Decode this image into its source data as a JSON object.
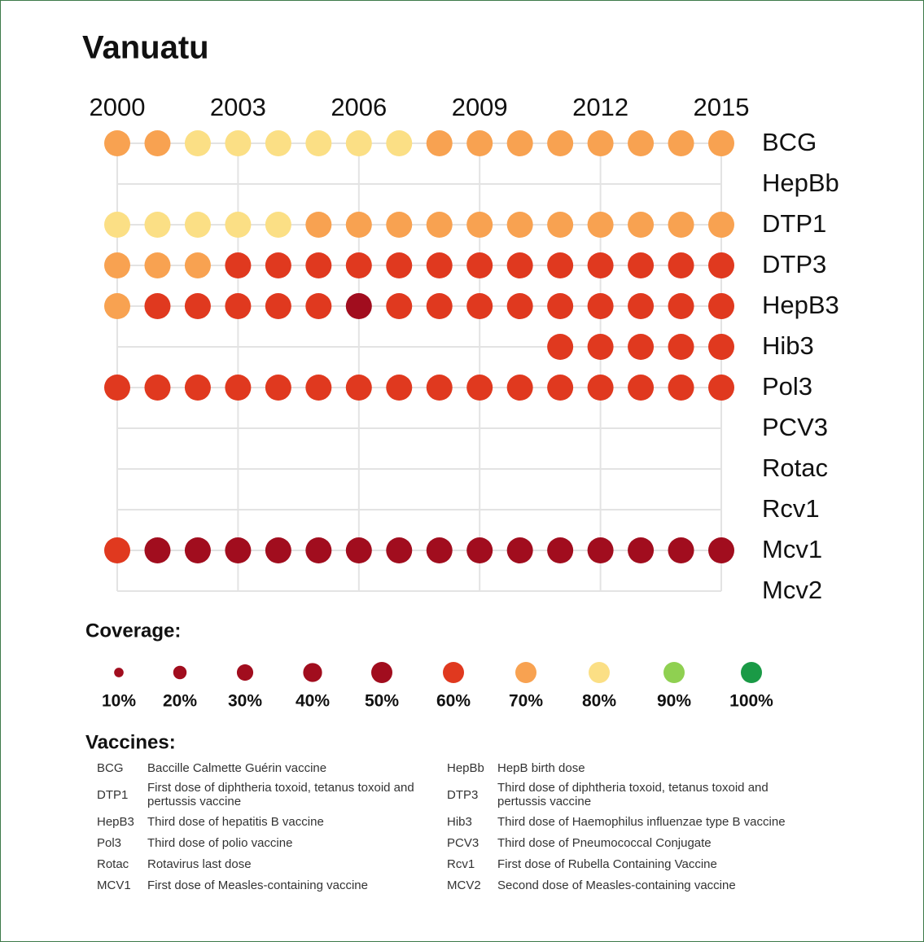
{
  "chart_data": {
    "type": "dot-matrix",
    "title": "Vanuatu",
    "x": [
      2000,
      2001,
      2002,
      2003,
      2004,
      2005,
      2006,
      2007,
      2008,
      2009,
      2010,
      2011,
      2012,
      2013,
      2014,
      2015
    ],
    "xlim": [
      2000,
      2015
    ],
    "xticks": [
      2000,
      2003,
      2006,
      2009,
      2012,
      2015
    ],
    "grid": true,
    "series": [
      {
        "name": "BCG",
        "values": [
          70,
          70,
          80,
          80,
          80,
          80,
          80,
          80,
          70,
          70,
          70,
          70,
          70,
          70,
          70,
          70
        ]
      },
      {
        "name": "HepBb",
        "values": [
          null,
          null,
          null,
          null,
          null,
          null,
          null,
          null,
          null,
          null,
          null,
          null,
          null,
          null,
          null,
          null
        ]
      },
      {
        "name": "DTP1",
        "values": [
          80,
          80,
          80,
          80,
          80,
          70,
          70,
          70,
          70,
          70,
          70,
          70,
          70,
          70,
          70,
          70
        ]
      },
      {
        "name": "DTP3",
        "values": [
          70,
          70,
          70,
          60,
          60,
          60,
          60,
          60,
          60,
          60,
          60,
          60,
          60,
          60,
          60,
          60
        ]
      },
      {
        "name": "HepB3",
        "values": [
          70,
          60,
          60,
          60,
          60,
          60,
          50,
          60,
          60,
          60,
          60,
          60,
          60,
          60,
          60,
          60
        ]
      },
      {
        "name": "Hib3",
        "values": [
          null,
          null,
          null,
          null,
          null,
          null,
          null,
          null,
          null,
          null,
          null,
          60,
          60,
          60,
          60,
          60
        ]
      },
      {
        "name": "Pol3",
        "values": [
          60,
          60,
          60,
          60,
          60,
          60,
          60,
          60,
          60,
          60,
          60,
          60,
          60,
          60,
          60,
          60
        ]
      },
      {
        "name": "PCV3",
        "values": [
          null,
          null,
          null,
          null,
          null,
          null,
          null,
          null,
          null,
          null,
          null,
          null,
          null,
          null,
          null,
          null
        ]
      },
      {
        "name": "Rotac",
        "values": [
          null,
          null,
          null,
          null,
          null,
          null,
          null,
          null,
          null,
          null,
          null,
          null,
          null,
          null,
          null,
          null
        ]
      },
      {
        "name": "Rcv1",
        "values": [
          null,
          null,
          null,
          null,
          null,
          null,
          null,
          null,
          null,
          null,
          null,
          null,
          null,
          null,
          null,
          null
        ]
      },
      {
        "name": "Mcv1",
        "values": [
          60,
          50,
          50,
          50,
          50,
          50,
          50,
          50,
          50,
          50,
          50,
          50,
          50,
          50,
          50,
          50
        ]
      },
      {
        "name": "Mcv2",
        "values": [
          null,
          null,
          null,
          null,
          null,
          null,
          null,
          null,
          null,
          null,
          null,
          null,
          null,
          null,
          null,
          null
        ]
      }
    ],
    "legend": {
      "title": "Coverage:",
      "values": [
        10,
        20,
        30,
        40,
        50,
        60,
        70,
        80,
        90,
        100
      ],
      "value_labels": [
        "10%",
        "20%",
        "30%",
        "40%",
        "50%",
        "60%",
        "70%",
        "80%",
        "90%",
        "100%"
      ],
      "colors": [
        "#a10d1e",
        "#a10d1e",
        "#a10d1e",
        "#a10d1e",
        "#a10d1e",
        "#e0391f",
        "#f8a251",
        "#fbdf85",
        "#8fd051",
        "#1a9a46"
      ]
    },
    "glossary": {
      "title": "Vaccines:",
      "items": [
        {
          "code": "BCG",
          "description": "Baccille Calmette Guérin vaccine"
        },
        {
          "code": "HepBb",
          "description": "HepB birth dose"
        },
        {
          "code": "DTP1",
          "description": "First dose of diphtheria toxoid, tetanus toxoid and pertussis vaccine"
        },
        {
          "code": "DTP3",
          "description": "Third dose of diphtheria toxoid, tetanus toxoid and pertussis vaccine"
        },
        {
          "code": "HepB3",
          "description": "Third dose of hepatitis B vaccine"
        },
        {
          "code": "Hib3",
          "description": "Third dose of Haemophilus influenzae type B vaccine"
        },
        {
          "code": "Pol3",
          "description": "Third dose of polio vaccine"
        },
        {
          "code": "PCV3",
          "description": "Third dose of Pneumococcal Conjugate"
        },
        {
          "code": "Rotac",
          "description": "Rotavirus last dose"
        },
        {
          "code": "Rcv1",
          "description": "First dose of Rubella Containing Vaccine"
        },
        {
          "code": "MCV1",
          "description": "First dose of Measles-containing vaccine"
        },
        {
          "code": "MCV2",
          "description": "Second dose of Measles-containing vaccine"
        }
      ]
    }
  }
}
